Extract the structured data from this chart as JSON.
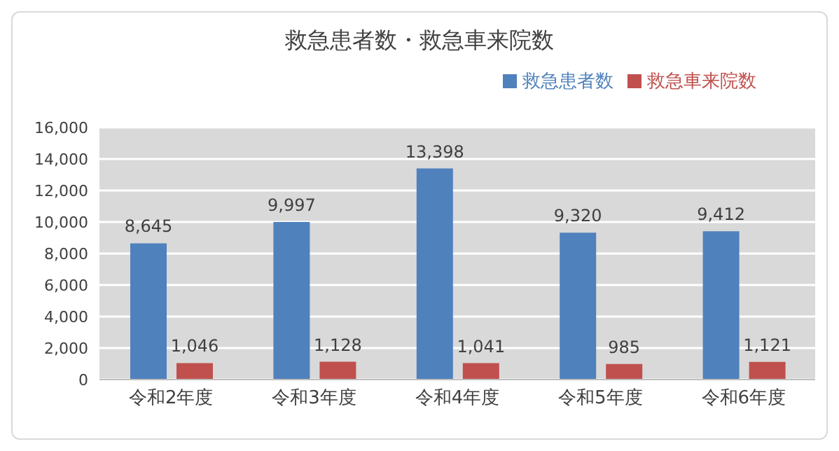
{
  "chart_data": {
    "type": "bar",
    "title": "救急患者数・救急車来院数",
    "categories": [
      "令和2年度",
      "令和3年度",
      "令和4年度",
      "令和5年度",
      "令和6年度"
    ],
    "series": [
      {
        "name": "救急患者数",
        "color": "#4f81bd",
        "values": [
          8645,
          9997,
          13398,
          9320,
          9412
        ],
        "value_labels": [
          "8,645",
          "9,997",
          "13,398",
          "9,320",
          "9,412"
        ]
      },
      {
        "name": "救急車来院数",
        "color": "#c0504d",
        "values": [
          1046,
          1128,
          1041,
          985,
          1121
        ],
        "value_labels": [
          "1,046",
          "1,128",
          "1,041",
          "985",
          "1,121"
        ]
      }
    ],
    "ylim": [
      0,
      16000
    ],
    "yticks": [
      {
        "value": 0,
        "label": "0"
      },
      {
        "value": 2000,
        "label": "2,000"
      },
      {
        "value": 4000,
        "label": "4,000"
      },
      {
        "value": 6000,
        "label": "6,000"
      },
      {
        "value": 8000,
        "label": "8,000"
      },
      {
        "value": 10000,
        "label": "10,000"
      },
      {
        "value": 12000,
        "label": "12,000"
      },
      {
        "value": 14000,
        "label": "14,000"
      },
      {
        "value": 16000,
        "label": "16,000"
      }
    ],
    "grid": "y",
    "legend": "top right"
  }
}
